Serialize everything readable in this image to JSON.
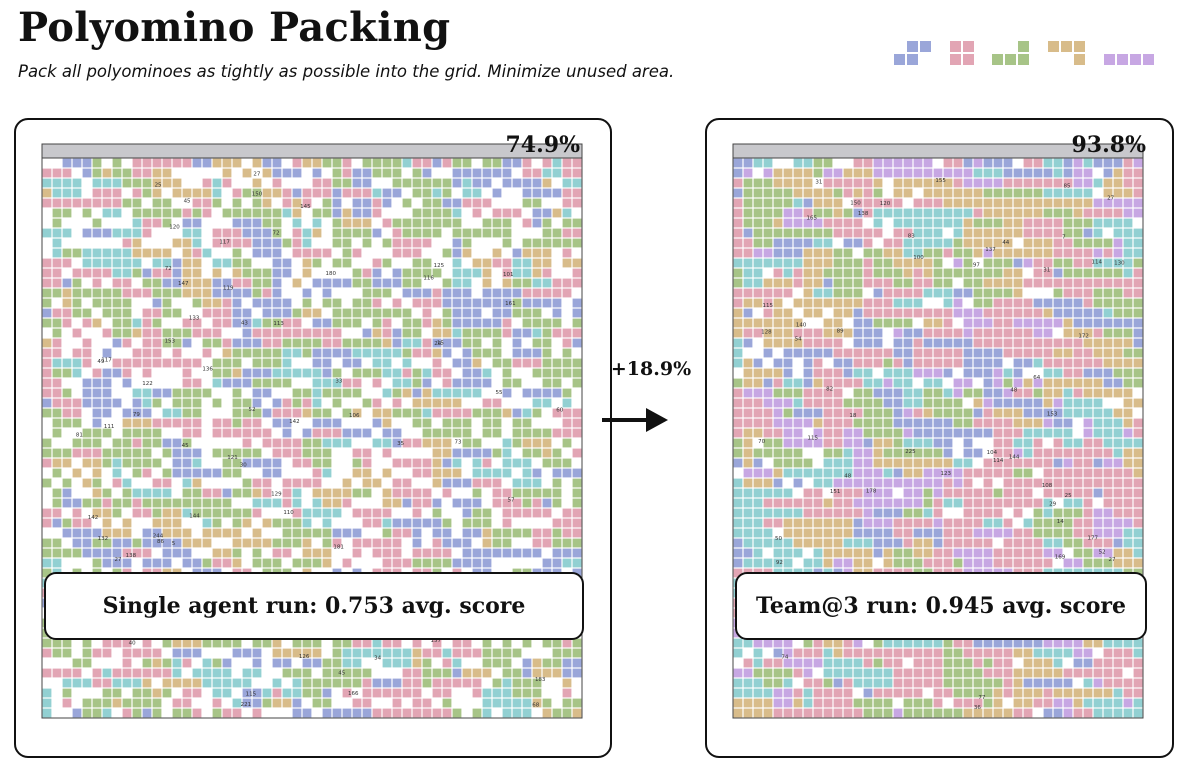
{
  "header": {
    "title": "Polyomino Packing",
    "subtitle": "Pack all polyominoes as tightly as possible into the grid. Minimize unused area."
  },
  "palette": {
    "blue": "#9aa6d9",
    "pink": "#e2a5b4",
    "green": "#a7c487",
    "tan": "#d8bc8a",
    "purple": "#c7a7e3",
    "teal": "#92d0d2",
    "grid_header": "#c8c8cc"
  },
  "legend_icons": [
    "blue-polyomino-icon",
    "pink-polyomino-icon",
    "green-polyomino-icon",
    "tan-polyomino-icon",
    "purple-polyomino-icon"
  ],
  "panels": {
    "left": {
      "percent": "74.9%",
      "fill_fraction": 0.749,
      "caption": "Single agent run: 0.753 avg. score",
      "piece_labels": [
        "24",
        "33",
        "166",
        "133",
        "72",
        "122",
        "180",
        "57",
        "116",
        "113",
        "129",
        "49",
        "156",
        "45",
        "22",
        "45",
        "101",
        "244",
        "133",
        "136",
        "117",
        "73",
        "153",
        "142",
        "157",
        "110",
        "106",
        "132",
        "121",
        "144",
        "35",
        "221",
        "55",
        "142",
        "115",
        "38",
        "52",
        "138",
        "145",
        "150",
        "25",
        "79",
        "150",
        "81",
        "27",
        "117",
        "161",
        "111",
        "181",
        "183",
        "34",
        "126",
        "111",
        "12",
        "30",
        "86",
        "27",
        "40",
        "5",
        "1",
        "68",
        "60",
        "147",
        "45",
        "62",
        "120",
        "125",
        "15",
        "119",
        "150",
        "72",
        "43",
        "42"
      ]
    },
    "right": {
      "percent": "93.8%",
      "fill_fraction": 0.938,
      "caption": "Team@3 run: 0.945 avg. score",
      "piece_labels": [
        "74",
        "115",
        "155",
        "44",
        "82",
        "48",
        "178",
        "150",
        "138",
        "30",
        "128",
        "140",
        "225",
        "83",
        "31",
        "64",
        "54",
        "97",
        "104",
        "169",
        "115",
        "36",
        "144",
        "165",
        "70",
        "177",
        "100",
        "113",
        "27",
        "123",
        "108",
        "22",
        "85",
        "12",
        "172",
        "165",
        "29",
        "25",
        "92",
        "50",
        "77",
        "31",
        "52",
        "151",
        "89",
        "27",
        "18",
        "127",
        "48",
        "120",
        "7",
        "153",
        "48",
        "137",
        "114",
        "130",
        "114",
        "14"
      ]
    },
    "improvement": "+18.9%"
  }
}
